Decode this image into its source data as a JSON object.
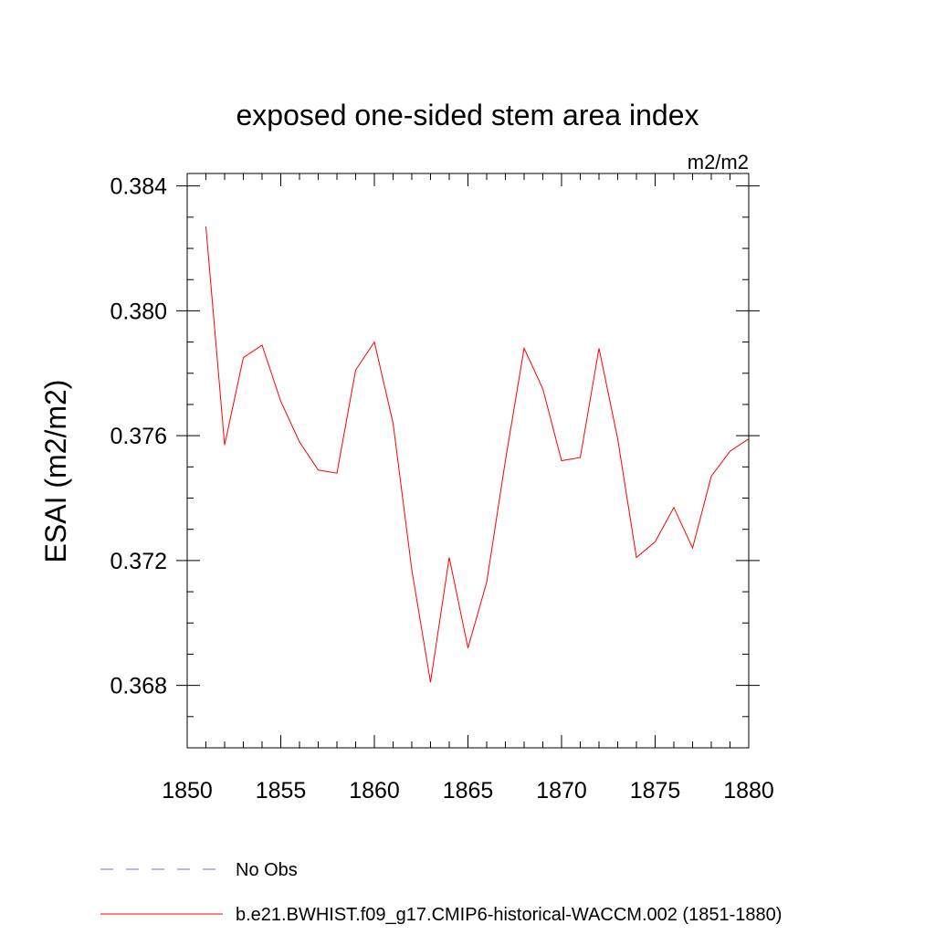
{
  "chart_data": {
    "type": "line",
    "title": "exposed one-sided stem area index",
    "units": "m2/m2",
    "ylabel": "ESAI  (m2/m2)",
    "xlabel": "",
    "xlim": [
      1850,
      1880
    ],
    "ylim": [
      0.366,
      0.3844
    ],
    "xticks": [
      1850,
      1855,
      1860,
      1865,
      1870,
      1875,
      1880
    ],
    "xtick_labels": [
      "1850",
      "1855",
      "1860",
      "1865",
      "1870",
      "1875",
      "1880"
    ],
    "yticks": [
      0.368,
      0.372,
      0.376,
      0.38,
      0.384
    ],
    "ytick_labels": [
      "0.368",
      "0.372",
      "0.376",
      "0.380",
      "0.384"
    ],
    "x_minor_step": 1,
    "y_minor_step": 0.001,
    "grid": false,
    "series": [
      {
        "name": "b.e21.BWHIST.f09_g17.CMIP6-historical-WACCM.002 (1851-1880)",
        "color": "#ff0000",
        "x": [
          1851,
          1852,
          1853,
          1854,
          1855,
          1856,
          1857,
          1858,
          1859,
          1860,
          1861,
          1862,
          1863,
          1864,
          1865,
          1866,
          1867,
          1868,
          1869,
          1870,
          1871,
          1872,
          1873,
          1874,
          1875,
          1876,
          1877,
          1878,
          1879,
          1880
        ],
        "values": [
          0.3827,
          0.3757,
          0.3785,
          0.3789,
          0.3771,
          0.3758,
          0.3749,
          0.3748,
          0.3781,
          0.379,
          0.3764,
          0.3717,
          0.3681,
          0.3721,
          0.3692,
          0.3713,
          0.3752,
          0.3788,
          0.3775,
          0.3752,
          0.3753,
          0.3788,
          0.3759,
          0.3721,
          0.3726,
          0.3737,
          0.3724,
          0.3747,
          0.3755,
          0.3759
        ]
      }
    ],
    "legend": [
      {
        "label": "No Obs",
        "color": "#7b6fb0",
        "style": "dashed"
      },
      {
        "label": "b.e21.BWHIST.f09_g17.CMIP6-historical-WACCM.002 (1851-1880)",
        "color": "#ff0000",
        "style": "solid"
      }
    ],
    "legend_position": "bottom-left"
  }
}
